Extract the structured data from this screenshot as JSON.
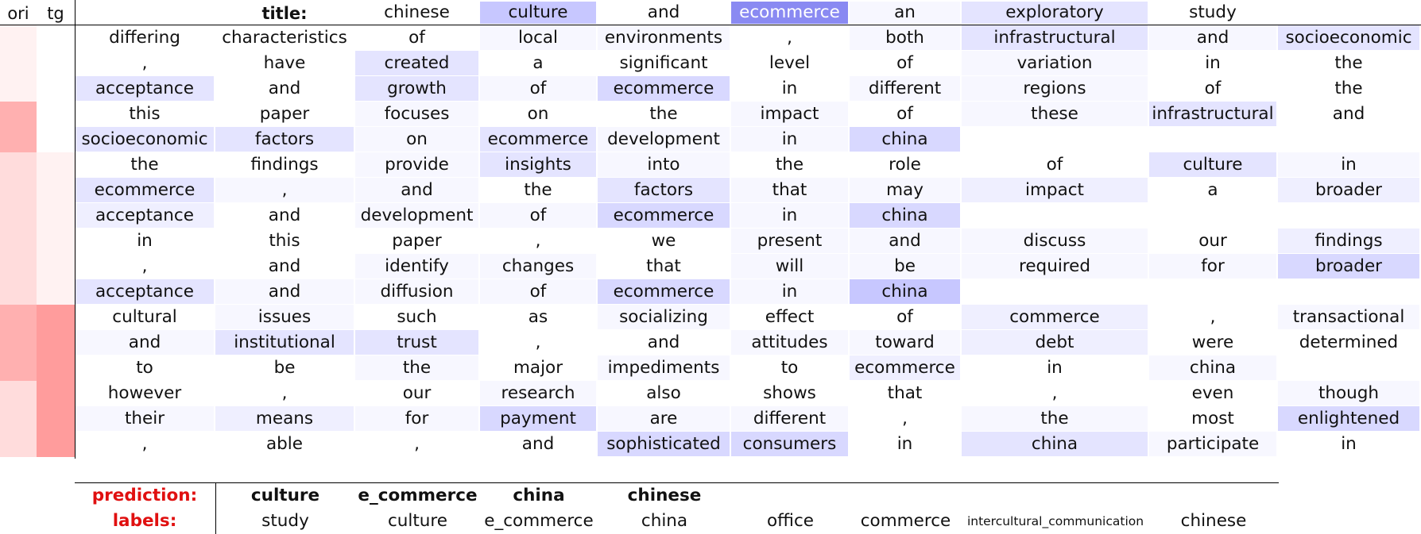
{
  "header": {
    "ori": "ori",
    "tg": "tg",
    "title_label": "title:"
  },
  "colors": {
    "strip_levels": [
      "#ffffff",
      "#fff2f2",
      "#ffdcdc",
      "#ffb0b0",
      "#ffc8c8",
      "#ff9c9c"
    ],
    "word_levels": [
      "#ffffff",
      "#f7f7ff",
      "#efefff",
      "#e4e4ff",
      "#d8d8ff",
      "#c7c7ff",
      "#8a8af2"
    ]
  },
  "title_tokens": [
    {
      "t": "chinese",
      "w": 0
    },
    {
      "t": "culture",
      "w": 5
    },
    {
      "t": "and",
      "w": 0
    },
    {
      "t": "ecommerce",
      "w": 6
    },
    {
      "t": "an",
      "w": 1
    },
    {
      "t": "exploratory",
      "w": 3
    },
    {
      "t": "study",
      "w": 0
    },
    {
      "t": "",
      "w": 0
    }
  ],
  "strip": {
    "ori": [
      1,
      1,
      1,
      3,
      3,
      2,
      2,
      2,
      2,
      2,
      2,
      3,
      3,
      3,
      2,
      2,
      2
    ],
    "tg": [
      0,
      0,
      0,
      0,
      0,
      1,
      1,
      1,
      1,
      1,
      1,
      5,
      5,
      5,
      5,
      5,
      5
    ]
  },
  "rows": [
    [
      [
        "differing",
        0
      ],
      [
        "characteristics",
        0
      ],
      [
        "of",
        0
      ],
      [
        "local",
        1
      ],
      [
        "environments",
        1
      ],
      [
        ",",
        0
      ],
      [
        "both",
        1
      ],
      [
        "infrastructural",
        3
      ],
      [
        "and",
        1
      ],
      [
        "socioeconomic",
        3
      ]
    ],
    [
      [
        ",",
        0
      ],
      [
        "have",
        0
      ],
      [
        "created",
        3
      ],
      [
        "a",
        0
      ],
      [
        "significant",
        0
      ],
      [
        "level",
        0
      ],
      [
        "of",
        0
      ],
      [
        "variation",
        1
      ],
      [
        "in",
        0
      ],
      [
        "the",
        0
      ]
    ],
    [
      [
        "acceptance",
        3
      ],
      [
        "and",
        0
      ],
      [
        "growth",
        3
      ],
      [
        "of",
        1
      ],
      [
        "ecommerce",
        4
      ],
      [
        "in",
        0
      ],
      [
        "different",
        1
      ],
      [
        "regions",
        1
      ],
      [
        "of",
        0
      ],
      [
        "the",
        0
      ]
    ],
    [
      [
        "this",
        0
      ],
      [
        "paper",
        0
      ],
      [
        "focuses",
        1
      ],
      [
        "on",
        0
      ],
      [
        "the",
        0
      ],
      [
        "impact",
        1
      ],
      [
        "of",
        0
      ],
      [
        "these",
        1
      ],
      [
        "infrastructural",
        3
      ],
      [
        "and",
        0
      ]
    ],
    [
      [
        "socioeconomic",
        3
      ],
      [
        "factors",
        3
      ],
      [
        "on",
        1
      ],
      [
        "ecommerce",
        3
      ],
      [
        "development",
        1
      ],
      [
        "in",
        1
      ],
      [
        "china",
        4
      ],
      [
        "",
        0
      ],
      [
        "",
        0
      ],
      [
        "",
        0
      ]
    ],
    [
      [
        "the",
        0
      ],
      [
        "findings",
        0
      ],
      [
        "provide",
        1
      ],
      [
        "insights",
        3
      ],
      [
        "into",
        1
      ],
      [
        "the",
        0
      ],
      [
        "role",
        0
      ],
      [
        "of",
        0
      ],
      [
        "culture",
        3
      ],
      [
        "in",
        1
      ]
    ],
    [
      [
        "ecommerce",
        3
      ],
      [
        ",",
        1
      ],
      [
        "and",
        1
      ],
      [
        "the",
        0
      ],
      [
        "factors",
        3
      ],
      [
        "that",
        1
      ],
      [
        "may",
        1
      ],
      [
        "impact",
        2
      ],
      [
        "a",
        0
      ],
      [
        "broader",
        2
      ]
    ],
    [
      [
        "acceptance",
        2
      ],
      [
        "and",
        0
      ],
      [
        "development",
        1
      ],
      [
        "of",
        1
      ],
      [
        "ecommerce",
        4
      ],
      [
        "in",
        1
      ],
      [
        "china",
        4
      ],
      [
        "",
        0
      ],
      [
        "",
        0
      ],
      [
        "",
        0
      ]
    ],
    [
      [
        "in",
        0
      ],
      [
        "this",
        0
      ],
      [
        "paper",
        0
      ],
      [
        ",",
        0
      ],
      [
        "we",
        0
      ],
      [
        "present",
        1
      ],
      [
        "and",
        1
      ],
      [
        "discuss",
        1
      ],
      [
        "our",
        0
      ],
      [
        "findings",
        2
      ]
    ],
    [
      [
        ",",
        0
      ],
      [
        "and",
        0
      ],
      [
        "identify",
        1
      ],
      [
        "changes",
        1
      ],
      [
        "that",
        0
      ],
      [
        "will",
        1
      ],
      [
        "be",
        1
      ],
      [
        "required",
        1
      ],
      [
        "for",
        1
      ],
      [
        "broader",
        4
      ]
    ],
    [
      [
        "acceptance",
        3
      ],
      [
        "and",
        1
      ],
      [
        "diffusion",
        1
      ],
      [
        "of",
        1
      ],
      [
        "ecommerce",
        4
      ],
      [
        "in",
        1
      ],
      [
        "china",
        5
      ],
      [
        "",
        0
      ],
      [
        "",
        0
      ],
      [
        "",
        0
      ]
    ],
    [
      [
        "cultural",
        0
      ],
      [
        "issues",
        1
      ],
      [
        "such",
        0
      ],
      [
        "as",
        0
      ],
      [
        "socializing",
        1
      ],
      [
        "effect",
        0
      ],
      [
        "of",
        0
      ],
      [
        "commerce",
        2
      ],
      [
        ",",
        0
      ],
      [
        "transactional",
        1
      ]
    ],
    [
      [
        "and",
        1
      ],
      [
        "institutional",
        3
      ],
      [
        "trust",
        3
      ],
      [
        ",",
        0
      ],
      [
        "and",
        0
      ],
      [
        "attitudes",
        1
      ],
      [
        "toward",
        1
      ],
      [
        "debt",
        2
      ],
      [
        "were",
        0
      ],
      [
        "determined",
        0
      ]
    ],
    [
      [
        "to",
        0
      ],
      [
        "be",
        0
      ],
      [
        "the",
        1
      ],
      [
        "major",
        0
      ],
      [
        "impediments",
        1
      ],
      [
        "to",
        0
      ],
      [
        "ecommerce",
        2
      ],
      [
        "in",
        0
      ],
      [
        "china",
        1
      ],
      [
        "",
        0
      ]
    ],
    [
      [
        "however",
        0
      ],
      [
        ",",
        0
      ],
      [
        "our",
        0
      ],
      [
        "research",
        1
      ],
      [
        "also",
        0
      ],
      [
        "shows",
        0
      ],
      [
        "that",
        0
      ],
      [
        ",",
        0
      ],
      [
        "even",
        0
      ],
      [
        "though",
        1
      ]
    ],
    [
      [
        "their",
        1
      ],
      [
        "means",
        2
      ],
      [
        "for",
        1
      ],
      [
        "payment",
        4
      ],
      [
        "are",
        1
      ],
      [
        "different",
        1
      ],
      [
        ",",
        0
      ],
      [
        "the",
        1
      ],
      [
        "most",
        0
      ],
      [
        "enlightened",
        4
      ]
    ],
    [
      [
        ",",
        0
      ],
      [
        "able",
        0
      ],
      [
        ",",
        0
      ],
      [
        "and",
        0
      ],
      [
        "sophisticated",
        4
      ],
      [
        "consumers",
        4
      ],
      [
        "in",
        0
      ],
      [
        "china",
        3
      ],
      [
        "participate",
        1
      ],
      [
        "in",
        0
      ]
    ]
  ],
  "prediction": {
    "label": "prediction:",
    "items": [
      "culture",
      "e_commerce",
      "china",
      "chinese"
    ]
  },
  "labels": {
    "label": "labels:",
    "items": [
      "study",
      "culture",
      "e_commerce",
      "china",
      "office",
      "commerce",
      "intercultural_communication",
      "chinese"
    ]
  }
}
